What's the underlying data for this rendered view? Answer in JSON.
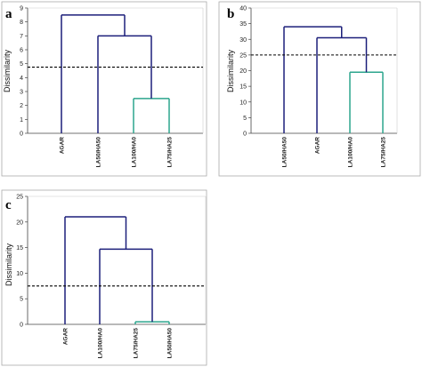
{
  "colors": {
    "cluster": "#1c1f7a",
    "leaf_cluster": "#2ca58d",
    "cut_line": "#000000",
    "frame": "#999999"
  },
  "chart_data": [
    {
      "type": "dendrogram",
      "panel_label": "a",
      "ylabel": "Dissimilarity",
      "ylim": [
        0,
        9
      ],
      "yticks": [
        "0",
        "1",
        "2",
        "3",
        "4",
        "5",
        "6",
        "7",
        "8",
        "9"
      ],
      "leaves": [
        "AGAR",
        "LA50/HA50",
        "LA100/HA0",
        "LA75/HA25"
      ],
      "merges": [
        {
          "left": 2,
          "right": 3,
          "height": 2.5,
          "color": "leaf_cluster"
        },
        {
          "left": 1,
          "right": "m0",
          "height": 7.0,
          "color": "cluster"
        },
        {
          "left": 0,
          "right": "m1",
          "height": 8.5,
          "color": "cluster"
        }
      ],
      "cut_height": 4.75
    },
    {
      "type": "dendrogram",
      "panel_label": "b",
      "ylabel": "Dissimilarity",
      "ylim": [
        0,
        40
      ],
      "yticks": [
        "0",
        "5",
        "10",
        "15",
        "20",
        "25",
        "30",
        "35",
        "40"
      ],
      "leaves": [
        "LA50/HA50",
        "AGAR",
        "LA100/HA0",
        "LA75/HA25"
      ],
      "merges": [
        {
          "left": 2,
          "right": 3,
          "height": 19.5,
          "color": "leaf_cluster"
        },
        {
          "left": 1,
          "right": "m0",
          "height": 30.5,
          "color": "cluster"
        },
        {
          "left": 0,
          "right": "m1",
          "height": 34.0,
          "color": "cluster"
        }
      ],
      "cut_height": 25.0
    },
    {
      "type": "dendrogram",
      "panel_label": "c",
      "ylabel": "Dissimilarity",
      "ylim": [
        0,
        25
      ],
      "yticks": [
        "0",
        "5",
        "10",
        "15",
        "20",
        "25"
      ],
      "leaves": [
        "AGAR",
        "LA100/HA0",
        "LA75/HA25",
        "LA50/HA50"
      ],
      "merges": [
        {
          "left": 2,
          "right": 3,
          "height": 0.5,
          "color": "leaf_cluster"
        },
        {
          "left": 1,
          "right": "m0",
          "height": 14.7,
          "color": "cluster"
        },
        {
          "left": 0,
          "right": "m1",
          "height": 21.0,
          "color": "cluster"
        }
      ],
      "cut_height": 7.5
    }
  ]
}
